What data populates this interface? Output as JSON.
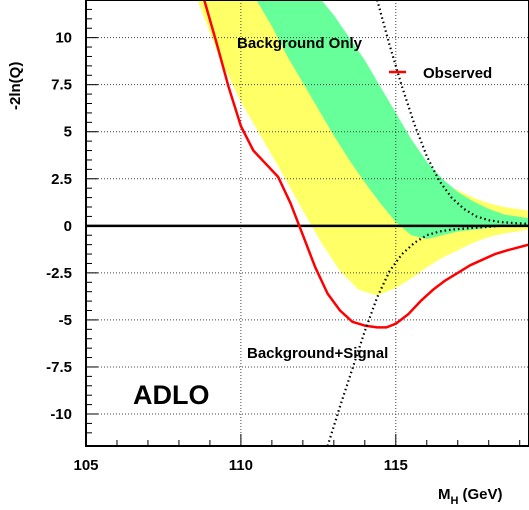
{
  "chart_data": {
    "type": "line",
    "title": "",
    "xlabel": "M",
    "xlabel_sub": "H",
    "xlabel_units": "(GeV)",
    "ylabel": "-2ln(Q)",
    "xlim": [
      105,
      119.3
    ],
    "ylim": [
      -11.7,
      12
    ],
    "x_ticks": [
      105,
      110,
      115
    ],
    "x_tick_labels": [
      "105",
      "110",
      "115"
    ],
    "y_ticks": [
      10,
      7.5,
      5,
      2.5,
      0,
      -2.5,
      -5,
      -7.5,
      -10
    ],
    "y_tick_labels": [
      "10",
      "7.5",
      "5",
      "2.5",
      "0",
      "-2.5",
      "-5",
      "-7.5",
      "-10"
    ],
    "grid": true,
    "annotations": {
      "background_only": "Background Only",
      "background_signal": "Background+Signal",
      "experiment": "ADLO"
    },
    "legend": {
      "placement": "top-right",
      "entries": [
        {
          "label": "Observed",
          "color": "#ff0000"
        }
      ]
    },
    "colors": {
      "yellow_band": "#ffff66",
      "green_band": "#66ff99",
      "observed": "#ff0000"
    },
    "series": [
      {
        "name": "Observed",
        "style": "solid",
        "color": "#ff0000",
        "x": [
          108.8,
          109.2,
          109.6,
          110.0,
          110.4,
          110.8,
          111.2,
          111.6,
          112.0,
          112.4,
          112.8,
          113.2,
          113.6,
          114.0,
          114.4,
          114.7,
          115.0,
          115.4,
          115.8,
          116.2,
          116.6,
          117.0,
          117.4,
          117.8,
          118.2,
          118.6,
          119.3
        ],
        "y": [
          12.1,
          9.8,
          7.4,
          5.3,
          4.0,
          3.3,
          2.6,
          1.2,
          -0.5,
          -2.2,
          -3.6,
          -4.5,
          -5.1,
          -5.3,
          -5.4,
          -5.4,
          -5.2,
          -4.7,
          -4.0,
          -3.4,
          -2.9,
          -2.5,
          -2.1,
          -1.8,
          -1.5,
          -1.3,
          -1.0
        ]
      },
      {
        "name": "",
        "style": "dotted",
        "color": "#000000",
        "x": [
          114.4,
          114.8,
          115.2,
          115.6,
          116.0,
          116.4,
          116.8,
          117.2,
          117.6,
          118.0,
          118.4,
          118.8,
          119.3
        ],
        "y": [
          12.0,
          9.6,
          7.4,
          5.4,
          3.7,
          2.4,
          1.5,
          0.9,
          0.5,
          0.3,
          0.2,
          0.15,
          0.1
        ]
      },
      {
        "name": "",
        "style": "dotted",
        "color": "#000000",
        "x": [
          112.8,
          113.2,
          113.6,
          114.0,
          114.4,
          114.8,
          115.2,
          115.6,
          116.0,
          116.4,
          116.8,
          117.2,
          117.6,
          118.0,
          118.4,
          118.8,
          119.3
        ],
        "y": [
          -11.7,
          -9.6,
          -7.6,
          -5.6,
          -3.8,
          -2.4,
          -1.5,
          -0.9,
          -0.5,
          -0.3,
          -0.2,
          -0.15,
          -0.1,
          -0.05,
          0.0,
          0.0,
          0.0
        ]
      }
    ],
    "bands": [
      {
        "name": "",
        "color": "#ffff66",
        "upper": {
          "x": [
            111.0,
            111.5,
            112.0,
            112.5,
            113.0,
            113.5,
            114.0,
            114.5,
            115.0,
            115.5,
            116.0,
            116.5,
            117.0,
            117.5,
            118.0,
            118.5,
            119.3
          ],
          "y": [
            12.0,
            11.0,
            10.0,
            9.0,
            8.0,
            7.0,
            6.0,
            5.1,
            4.3,
            3.5,
            2.8,
            2.3,
            1.9,
            1.5,
            1.2,
            1.0,
            0.8
          ]
        },
        "lower": {
          "x": [
            108.6,
            109.3,
            110.0,
            110.7,
            111.4,
            112.0,
            112.6,
            113.2,
            113.8,
            114.4,
            115.0,
            115.5,
            116.0,
            116.5,
            117.0,
            117.5,
            118.0,
            118.5,
            119.3
          ],
          "y": [
            12.0,
            9.0,
            6.6,
            4.6,
            2.6,
            0.8,
            -0.9,
            -2.4,
            -3.4,
            -3.7,
            -3.3,
            -2.8,
            -2.2,
            -1.7,
            -1.3,
            -0.9,
            -0.6,
            -0.4,
            -0.2
          ]
        }
      },
      {
        "name": "",
        "color": "#66ff99",
        "upper": {
          "x": [
            112.6,
            113.0,
            113.5,
            114.0,
            114.5,
            115.0,
            115.5,
            116.0,
            116.5,
            117.0,
            117.5,
            118.0,
            118.5,
            119.3
          ],
          "y": [
            12.0,
            11.2,
            10.0,
            8.8,
            7.4,
            6.0,
            4.6,
            3.4,
            2.5,
            1.8,
            1.3,
            0.9,
            0.6,
            0.4
          ]
        },
        "lower": {
          "x": [
            110.5,
            111.0,
            111.5,
            112.0,
            112.5,
            113.0,
            113.5,
            114.0,
            114.5,
            115.0,
            115.5,
            116.0,
            116.5,
            117.0,
            117.5,
            118.0,
            118.5,
            119.3
          ],
          "y": [
            12.0,
            10.6,
            9.0,
            7.6,
            6.2,
            4.8,
            3.5,
            2.3,
            1.2,
            0.2,
            -0.5,
            -0.7,
            -0.5,
            -0.3,
            -0.2,
            -0.1,
            -0.05,
            0.0
          ]
        }
      }
    ]
  }
}
